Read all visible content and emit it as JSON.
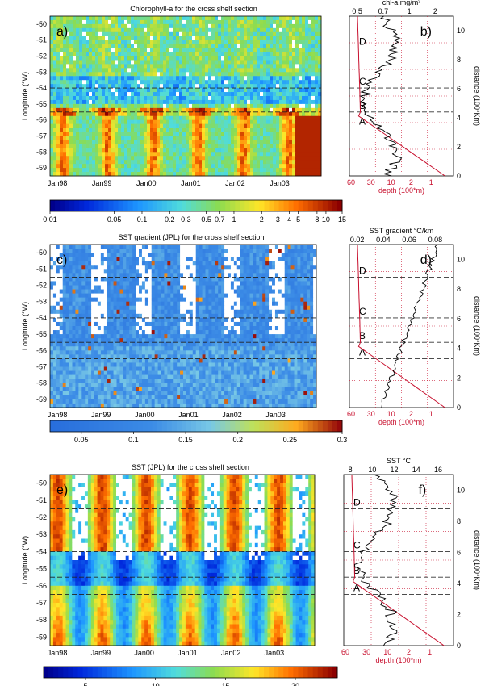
{
  "colors": {
    "depth_line": "#c8102e",
    "profile_line": "#000000",
    "grid": "#c8102e"
  },
  "row_labels": [
    "-50",
    "-51",
    "-52",
    "-53",
    "-54",
    "-55",
    "-56",
    "-57",
    "-58",
    "-59"
  ],
  "x_labels": [
    "Jan98",
    "Jan99",
    "Jan00",
    "Jan01",
    "Jan02",
    "Jan03"
  ],
  "dist_ticks": [
    "0",
    "2",
    "4",
    "6",
    "8",
    "10"
  ],
  "depth_ticks": [
    "60",
    "30",
    "10",
    "2",
    "1"
  ],
  "zone_letters": [
    "D",
    "C",
    "B",
    "A"
  ],
  "ylabel_lon": "Longitude (°W)",
  "ylabel_dist": "distance (100*Km)",
  "xlabel_depth": "depth (100*m)",
  "chart_data": [
    {
      "type": "heatmap",
      "title": "Chlorophyll-a for the cross shelf section",
      "panel": "a)",
      "ylabel": "Longitude (°W)",
      "colorbar_ticks": [
        "0.01",
        "0.05",
        "0.1",
        "0.2",
        "0.3",
        "0.5",
        "0.7",
        "1",
        "2",
        "3",
        "4",
        "5",
        "8",
        "10",
        "15"
      ],
      "colorbar_label": ""
    },
    {
      "type": "line",
      "panel": "b)",
      "top_axis_title": "chl-a mg/m³",
      "top_ticks": [
        "0.5",
        "0.7",
        "1",
        "2"
      ],
      "xlabel": "depth (100*m)",
      "ylabel": "distance (100*Km)",
      "zones": [
        "D",
        "C",
        "B",
        "A"
      ]
    },
    {
      "type": "heatmap",
      "title": "SST gradient (JPL) for the cross shelf section",
      "panel": "c)",
      "ylabel": "Longitude (°W)",
      "colorbar_ticks": [
        "0.05",
        "0.1",
        "0.15",
        "0.2",
        "0.25",
        "0.3"
      ]
    },
    {
      "type": "line",
      "panel": "d)",
      "top_axis_title": "SST gradient °C/km",
      "top_ticks": [
        "0.02",
        "0.04",
        "0.06",
        "0.08"
      ],
      "xlabel": "depth (100*m)",
      "ylabel": "distance (100*Km)",
      "zones": [
        "D",
        "C",
        "B",
        "A"
      ]
    },
    {
      "type": "heatmap",
      "title": "SST (JPL) for the cross shelf section",
      "panel": "e)",
      "ylabel": "Longitude (°W)",
      "colorbar_ticks": [
        "5",
        "10",
        "15",
        "20"
      ]
    },
    {
      "type": "line",
      "panel": "f)",
      "top_axis_title": "SST °C",
      "top_ticks": [
        "8",
        "10",
        "12",
        "14",
        "16"
      ],
      "xlabel": "depth (100*m)",
      "ylabel": "distance (100*Km)",
      "zones": [
        "D",
        "C",
        "B",
        "A"
      ]
    }
  ]
}
